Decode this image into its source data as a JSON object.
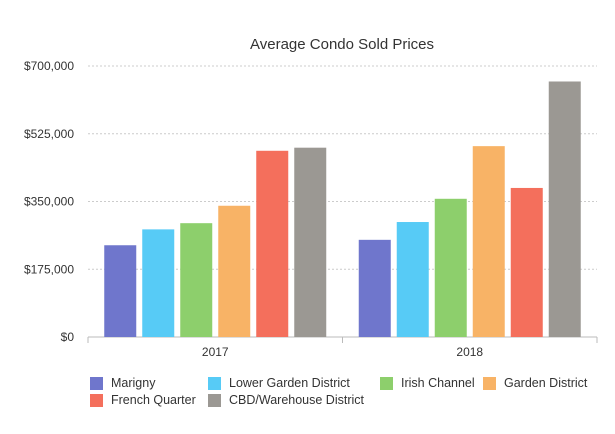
{
  "chart_data": {
    "type": "bar",
    "title": "Average Condo Sold Prices",
    "xlabel": "",
    "ylabel": "",
    "categories": [
      "2017",
      "2018"
    ],
    "ylim": [
      0,
      700000
    ],
    "yticks": [
      0,
      175000,
      350000,
      525000,
      700000
    ],
    "ytick_labels": [
      "$0",
      "$175,000",
      "$350,000",
      "$525,000",
      "$700,000"
    ],
    "grid": true,
    "legend_position": "bottom",
    "series": [
      {
        "name": "Marigny",
        "color": "#6f76cc",
        "values": [
          237000,
          251000
        ]
      },
      {
        "name": "Lower Garden District",
        "color": "#57cbf6",
        "values": [
          278000,
          297000
        ]
      },
      {
        "name": "Irish Channel",
        "color": "#8dcf6c",
        "values": [
          294000,
          357000
        ]
      },
      {
        "name": "Garden District",
        "color": "#f8b366",
        "values": [
          339000,
          493000
        ]
      },
      {
        "name": "French Quarter",
        "color": "#f46f5c",
        "values": [
          481000,
          385000
        ]
      },
      {
        "name": "CBD/Warehouse District",
        "color": "#9b9893",
        "values": [
          489000,
          660000
        ]
      }
    ]
  }
}
